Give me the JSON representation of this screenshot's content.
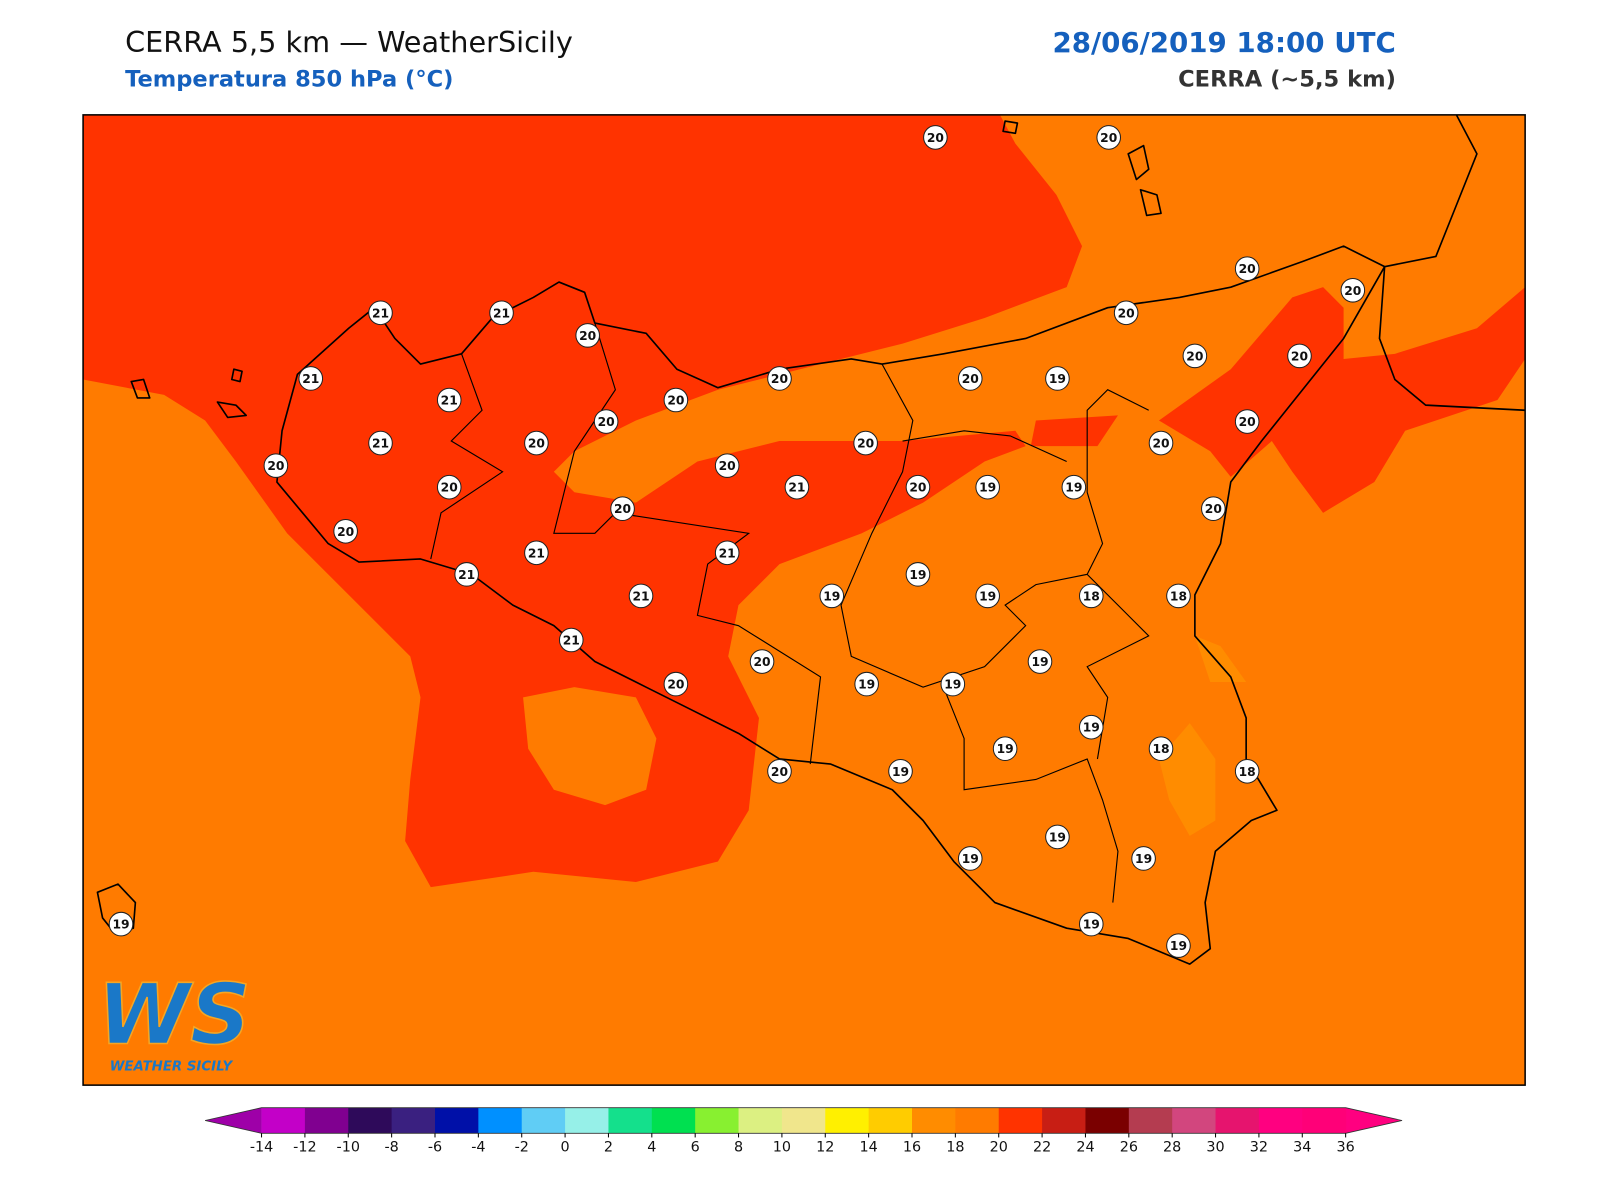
{
  "header": {
    "title": "CERRA 5,5 km — WeatherSicily",
    "subtitle": "Temperatura 850 hPa (°C)",
    "datetime": "28/06/2019 18:00 UTC",
    "model": "CERRA (~5,5 km)"
  },
  "stations": [
    20,
    20,
    21,
    21,
    20,
    20,
    20,
    20,
    21,
    21,
    20,
    20,
    20,
    20,
    19,
    20,
    20,
    21,
    20,
    20,
    20,
    20,
    20,
    20,
    20,
    21,
    20,
    19,
    19,
    20,
    20,
    20,
    21,
    21,
    21,
    21,
    19,
    19,
    19,
    18,
    18,
    21,
    20,
    19,
    20,
    19,
    19,
    19,
    19,
    18,
    20,
    19,
    18,
    19,
    19,
    19,
    19,
    19,
    19
  ],
  "colorbar": {
    "ticks": [
      -14,
      -12,
      -10,
      -8,
      -6,
      -4,
      -2,
      0,
      2,
      4,
      6,
      8,
      10,
      12,
      14,
      16,
      18,
      20,
      22,
      24,
      26,
      28,
      30,
      32,
      34,
      36
    ],
    "colors": [
      "#c300c8",
      "#800090",
      "#2e0a5a",
      "#3a2080",
      "#0010a8",
      "#0090ff",
      "#60cdf5",
      "#96f0e8",
      "#14e08c",
      "#00e050",
      "#88f030",
      "#dcf082",
      "#f0e68c",
      "#fff000",
      "#ffcc00",
      "#ff8c00",
      "#ff7b00",
      "#ff3300",
      "#c81e14",
      "#7a0000",
      "#b43c50",
      "#d2467e",
      "#e6146e",
      "#ff0080",
      "#ff0078"
    ],
    "extend_colors": [
      "#9e00a8",
      "#ff0080"
    ]
  },
  "logo": {
    "mark": "WS",
    "text": "WEATHER SICILY"
  }
}
